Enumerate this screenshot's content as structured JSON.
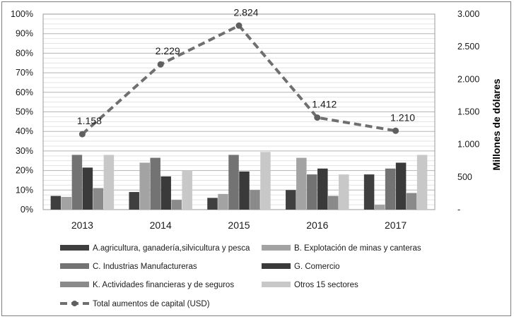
{
  "chart_data": {
    "type": "bar",
    "categories": [
      "2013",
      "2014",
      "2015",
      "2016",
      "2017"
    ],
    "series": [
      {
        "name": "A.agricultura, ganadería,silvicultura y pesca",
        "color": "#3f3f3f",
        "values": [
          0.07,
          0.09,
          0.06,
          0.1,
          0.18
        ]
      },
      {
        "name": "B. Explotación de minas y canteras",
        "color": "#a3a3a3",
        "values": [
          0.065,
          0.24,
          0.08,
          0.265,
          0.025
        ]
      },
      {
        "name": "C. Industrias Manufactureras",
        "color": "#737373",
        "values": [
          0.28,
          0.265,
          0.28,
          0.18,
          0.21
        ]
      },
      {
        "name": "G. Comercio",
        "color": "#3a3a3a",
        "values": [
          0.215,
          0.17,
          0.195,
          0.21,
          0.24
        ]
      },
      {
        "name": "K. Actividades financieras y de seguros",
        "color": "#8a8a8a",
        "values": [
          0.11,
          0.05,
          0.1,
          0.07,
          0.085
        ]
      },
      {
        "name": "Otros 15 sectores",
        "color": "#c8c8c8",
        "values": [
          0.28,
          0.2,
          0.295,
          0.18,
          0.28
        ]
      }
    ],
    "line_series": {
      "name": "Total aumentos de capital (USD)",
      "color": "#6f6f6f",
      "values": [
        1158,
        2229,
        2824,
        1412,
        1210
      ],
      "labels": [
        "1.158",
        "2.229",
        "2.824",
        "1.412",
        "1.210"
      ]
    },
    "y_left": {
      "ylim": [
        0,
        1
      ],
      "ticks": [
        0,
        0.1,
        0.2,
        0.3,
        0.4,
        0.5,
        0.6,
        0.7,
        0.8,
        0.9,
        1.0
      ],
      "tick_labels": [
        "0%",
        "10%",
        "20%",
        "30%",
        "40%",
        "50%",
        "60%",
        "70%",
        "80%",
        "90%",
        "100%"
      ]
    },
    "y_right": {
      "label": "Millones de dólares",
      "ylim": [
        0,
        3000
      ],
      "ticks": [
        0,
        500,
        1000,
        1500,
        2000,
        2500,
        3000
      ],
      "tick_labels": [
        "-",
        "500",
        "1.000",
        "1.500",
        "2.000",
        "2.500",
        "3.000"
      ]
    },
    "grid": true,
    "legend": "bottom"
  }
}
